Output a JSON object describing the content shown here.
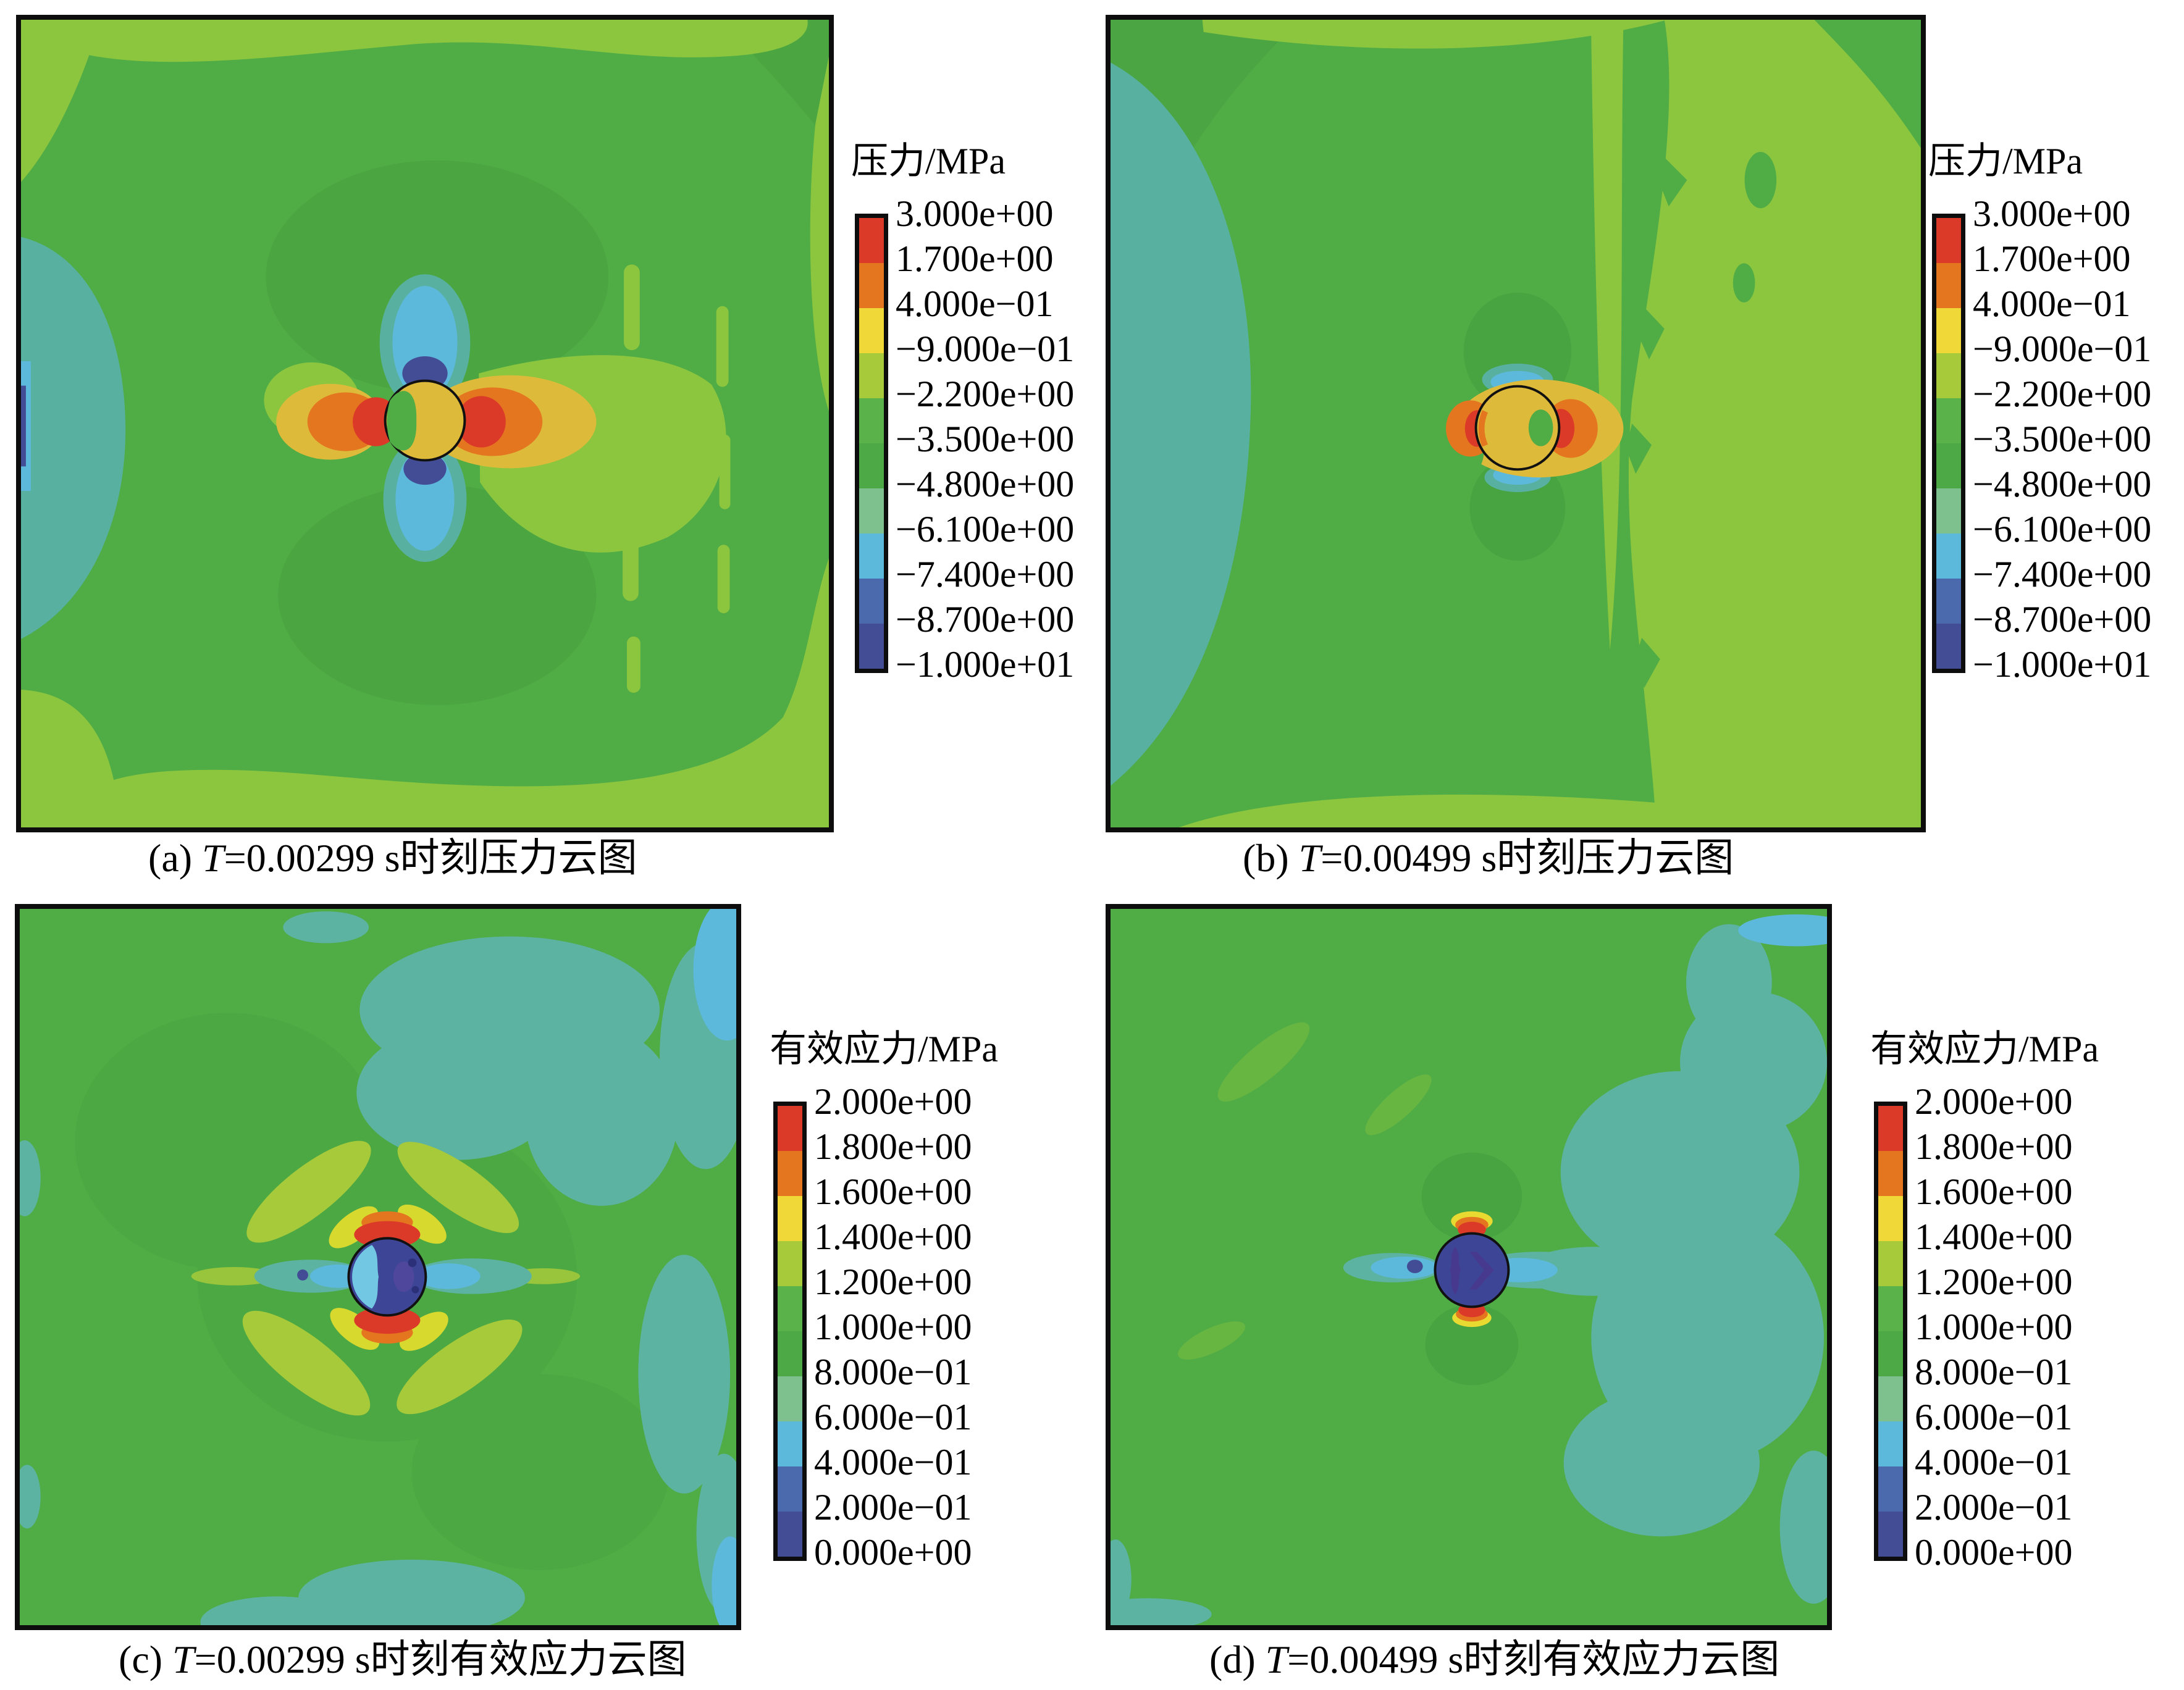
{
  "figure": {
    "captions": {
      "a": {
        "prefix": "(a) ",
        "t": "T",
        "rest": "=0.00299 s时刻压力云图"
      },
      "b": {
        "prefix": "(b) ",
        "t": "T",
        "rest": "=0.00499 s时刻压力云图"
      },
      "c": {
        "prefix": "(c) ",
        "t": "T",
        "rest": "=0.00299 s时刻有效应力云图"
      },
      "d": {
        "prefix": "(d) ",
        "t": "T",
        "rest": "=0.00499 s时刻有效应力云图"
      }
    },
    "legends": {
      "pressure_a": {
        "title": "压力/MPa",
        "labels": [
          "3.000e+00",
          "1.700e+00",
          "4.000e−01",
          "−9.000e−01",
          "−2.200e+00",
          "−3.500e+00",
          "−4.800e+00",
          "−6.100e+00",
          "−7.400e+00",
          "−8.700e+00",
          "−1.000e+01"
        ]
      },
      "pressure_b": {
        "title": "压力/MPa",
        "labels": [
          "3.000e+00",
          "1.700e+00",
          "4.000e−01",
          "−9.000e−01",
          "−2.200e+00",
          "−3.500e+00",
          "−4.800e+00",
          "−6.100e+00",
          "−7.400e+00",
          "−8.700e+00",
          "−1.000e+01"
        ]
      },
      "stress_c": {
        "title": "有效应力/MPa",
        "labels": [
          "2.000e+00",
          "1.800e+00",
          "1.600e+00",
          "1.400e+00",
          "1.200e+00",
          "1.000e+00",
          "8.000e−01",
          "6.000e−01",
          "4.000e−01",
          "2.000e−01",
          "0.000e+00"
        ]
      },
      "stress_d": {
        "title": "有效应力/MPa",
        "labels": [
          "2.000e+00",
          "1.800e+00",
          "1.600e+00",
          "1.400e+00",
          "1.200e+00",
          "1.000e+00",
          "8.000e−01",
          "6.000e−01",
          "4.000e−01",
          "2.000e−01",
          "0.000e+00"
        ]
      }
    },
    "colorbar_colors": [
      "#dc3a28",
      "#e4761f",
      "#f0d838",
      "#a6ca3a",
      "#5ab34a",
      "#4ca945",
      "#7fc08f",
      "#5db9dc",
      "#4b69ad",
      "#434d96"
    ]
  },
  "chart_data": [
    {
      "type": "heatmap",
      "panel": "a",
      "title": "(a) T=0.00299 s时刻压力云图",
      "legend_title": "压力/MPa",
      "unit": "MPa",
      "levels": [
        3.0,
        1.7,
        0.4,
        -0.9,
        -2.2,
        -3.5,
        -4.8,
        -6.1,
        -7.4,
        -8.7,
        -10.0
      ],
      "level_labels": [
        "3.000e+00",
        "1.700e+00",
        "4.000e−01",
        "−9.000e−01",
        "−2.200e+00",
        "−3.500e+00",
        "−4.800e+00",
        "−6.100e+00",
        "−7.400e+00",
        "−8.700e+00",
        "−1.000e+01"
      ],
      "palette_top_to_bottom": [
        "#dc3a28",
        "#e4761f",
        "#f0d838",
        "#a6ca3a",
        "#5ab34a",
        "#4ca945",
        "#7fc08f",
        "#5db9dc",
        "#4b69ad",
        "#434d96"
      ],
      "legend_position": "right",
      "features": "green field; teal low-pressure zone at left edge; central circular cavity filled yellow with red high-pressure lobes left/right and blue low-pressure lobes above/below; yellow-green wedge extending right"
    },
    {
      "type": "heatmap",
      "panel": "b",
      "title": "(b) T=0.00499 s时刻压力云图",
      "legend_title": "压力/MPa",
      "unit": "MPa",
      "levels": [
        3.0,
        1.7,
        0.4,
        -0.9,
        -2.2,
        -3.5,
        -4.8,
        -6.1,
        -7.4,
        -8.7,
        -10.0
      ],
      "level_labels": [
        "3.000e+00",
        "1.700e+00",
        "4.000e−01",
        "−9.000e−01",
        "−2.200e+00",
        "−3.500e+00",
        "−4.800e+00",
        "−6.100e+00",
        "−7.400e+00",
        "−8.700e+00",
        "−1.000e+01"
      ],
      "palette_top_to_bottom": [
        "#dc3a28",
        "#e4761f",
        "#f0d838",
        "#a6ca3a",
        "#5ab34a",
        "#4ca945",
        "#7fc08f",
        "#5db9dc",
        "#4b69ad",
        "#434d96"
      ],
      "legend_position": "right",
      "features": "green field; broad teal zone along left edge; yellow-green region over right third with jagged boundary; yellow-filled cavity with small red lobes left/right and thin blue arcs above/below"
    },
    {
      "type": "heatmap",
      "panel": "c",
      "title": "(c) T=0.00299 s时刻有效应力云图",
      "legend_title": "有效应力/MPa",
      "unit": "MPa",
      "levels": [
        2.0,
        1.8,
        1.6,
        1.4,
        1.2,
        1.0,
        0.8,
        0.6,
        0.4,
        0.2,
        0.0
      ],
      "level_labels": [
        "2.000e+00",
        "1.800e+00",
        "1.600e+00",
        "1.400e+00",
        "1.200e+00",
        "1.000e+00",
        "8.000e−01",
        "6.000e−01",
        "4.000e−01",
        "2.000e−01",
        "0.000e+00"
      ],
      "palette_top_to_bottom": [
        "#dc3a28",
        "#e4761f",
        "#f0d838",
        "#a6ca3a",
        "#5ab34a",
        "#4ca945",
        "#7fc08f",
        "#5db9dc",
        "#4b69ad",
        "#434d96"
      ],
      "legend_position": "right",
      "features": "green field with scattered teal low-stress patches; dark-blue cavity circle with light-blue crescent; red high-stress arcs above/below cavity; yellow-green X-shaped shear rays; teal-blue horizontal band through cavity"
    },
    {
      "type": "heatmap",
      "panel": "d",
      "title": "(d) T=0.00499 s时刻有效应力云图",
      "legend_title": "有效应力/MPa",
      "unit": "MPa",
      "levels": [
        2.0,
        1.8,
        1.6,
        1.4,
        1.2,
        1.0,
        0.8,
        0.6,
        0.4,
        0.2,
        0.0
      ],
      "level_labels": [
        "2.000e+00",
        "1.800e+00",
        "1.600e+00",
        "1.400e+00",
        "1.200e+00",
        "1.000e+00",
        "8.000e−01",
        "6.000e−01",
        "4.000e−01",
        "2.000e−01",
        "0.000e+00"
      ],
      "palette_top_to_bottom": [
        "#dc3a28",
        "#e4761f",
        "#f0d838",
        "#a6ca3a",
        "#5ab34a",
        "#4ca945",
        "#7fc08f",
        "#5db9dc",
        "#4b69ad",
        "#434d96"
      ],
      "legend_position": "right",
      "features": "green field; large teal low-stress region right of center; dark-blue cavity circle with darker chevrons inside; small red/yellow caps above and below cavity; short sky-blue bands left and right"
    }
  ]
}
